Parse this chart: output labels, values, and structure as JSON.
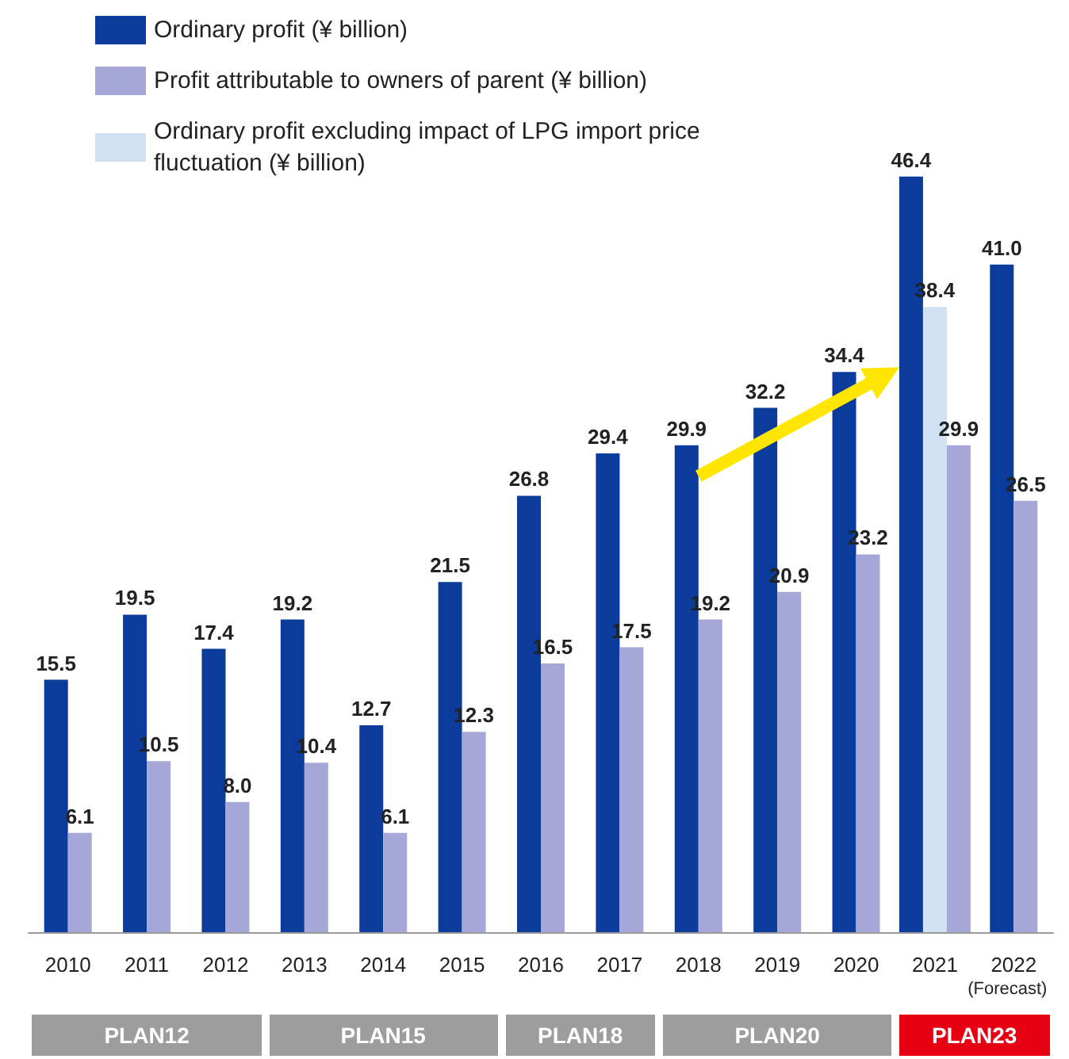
{
  "chart_data": {
    "type": "bar",
    "categories": [
      "2010",
      "2011",
      "2012",
      "2013",
      "2014",
      "2015",
      "2016",
      "2017",
      "2018",
      "2019",
      "2020",
      "2021",
      "2022"
    ],
    "series": [
      {
        "name": "Ordinary profit (¥ billion)",
        "color": "#0b3c9b",
        "values": [
          15.5,
          19.5,
          17.4,
          19.2,
          12.7,
          21.5,
          26.8,
          29.4,
          29.9,
          32.2,
          34.4,
          46.4,
          41.0
        ],
        "value_labels": [
          "15.5",
          "19.5",
          "17.4",
          "19.2",
          "12.7",
          "21.5",
          "26.8",
          "29.4",
          "29.9",
          "32.2",
          "34.4",
          "46.4",
          "41.0"
        ]
      },
      {
        "name": "Ordinary profit excluding impact of LPG import price fluctuation (¥ billion)",
        "color": "#cfe1f2",
        "values": [
          null,
          null,
          null,
          null,
          null,
          null,
          null,
          null,
          null,
          null,
          null,
          38.4,
          null
        ],
        "value_labels": [
          null,
          null,
          null,
          null,
          null,
          null,
          null,
          null,
          null,
          null,
          null,
          "38.4",
          null
        ]
      },
      {
        "name": "Profit attributable to owners of parent (¥ billion)",
        "color": "#a5a7d7",
        "values": [
          6.1,
          10.5,
          8.0,
          10.4,
          6.1,
          12.3,
          16.5,
          17.5,
          19.2,
          20.9,
          23.2,
          29.9,
          26.5
        ],
        "value_labels": [
          "6.1",
          "10.5",
          "8.0",
          "10.4",
          "6.1",
          "12.3",
          "16.5",
          "17.5",
          "19.2",
          "20.9",
          "23.2",
          "29.9",
          "26.5"
        ]
      }
    ],
    "legend": "top left",
    "annotations": [
      "(Forecast)",
      "PLAN12",
      "PLAN15",
      "PLAN18",
      "PLAN20",
      "PLAN23"
    ]
  }
}
